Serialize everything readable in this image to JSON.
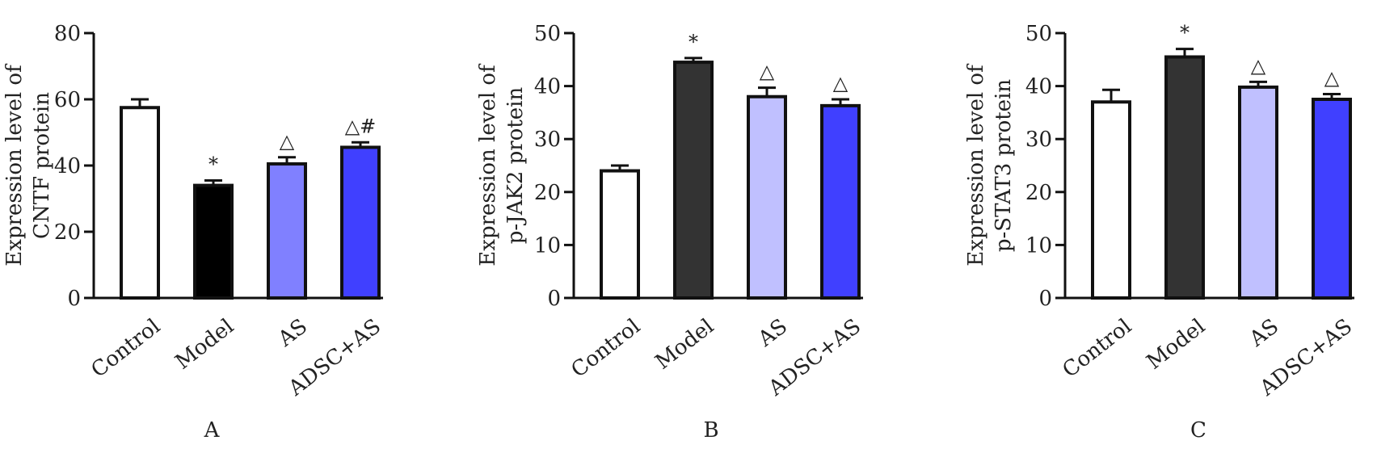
{
  "chart_data": [
    {
      "type": "bar",
      "panel_label": "A",
      "ylabel_lines": [
        "Expression level of",
        "CNTF protein"
      ],
      "categories": [
        "Control",
        "Model",
        "AS",
        "ADSC+AS"
      ],
      "values": [
        57.5,
        34,
        40.5,
        45.5
      ],
      "errors": [
        2.5,
        1.5,
        2.0,
        1.5
      ],
      "annotations": [
        "",
        "*",
        "△",
        "△#"
      ],
      "colors": [
        "#ffffff",
        "#000000",
        "#8080ff",
        "#4040ff"
      ],
      "ylim": [
        0,
        80
      ],
      "yticks": [
        0,
        20,
        40,
        60,
        80
      ]
    },
    {
      "type": "bar",
      "panel_label": "B",
      "ylabel_lines": [
        "Expression level of",
        "p-JAK2 protein"
      ],
      "categories": [
        "Control",
        "Model",
        "AS",
        "ADSC+AS"
      ],
      "values": [
        24,
        44.5,
        38,
        36.3
      ],
      "errors": [
        1.0,
        0.8,
        1.7,
        1.2
      ],
      "annotations": [
        "",
        "*",
        "△",
        "△"
      ],
      "colors": [
        "#ffffff",
        "#333333",
        "#c0c0ff",
        "#4040ff"
      ],
      "ylim": [
        0,
        50
      ],
      "yticks": [
        0,
        10,
        20,
        30,
        40,
        50
      ]
    },
    {
      "type": "bar",
      "panel_label": "C",
      "ylabel_lines": [
        "Expression level of",
        "p-STAT3 protein"
      ],
      "categories": [
        "Control",
        "Model",
        "AS",
        "ADSC+AS"
      ],
      "values": [
        37,
        45.5,
        39.8,
        37.5
      ],
      "errors": [
        2.3,
        1.5,
        1.0,
        1.0
      ],
      "annotations": [
        "",
        "*",
        "△",
        "△"
      ],
      "colors": [
        "#ffffff",
        "#333333",
        "#c0c0ff",
        "#4040ff"
      ],
      "ylim": [
        0,
        50
      ],
      "yticks": [
        0,
        10,
        20,
        30,
        40,
        50
      ]
    }
  ]
}
